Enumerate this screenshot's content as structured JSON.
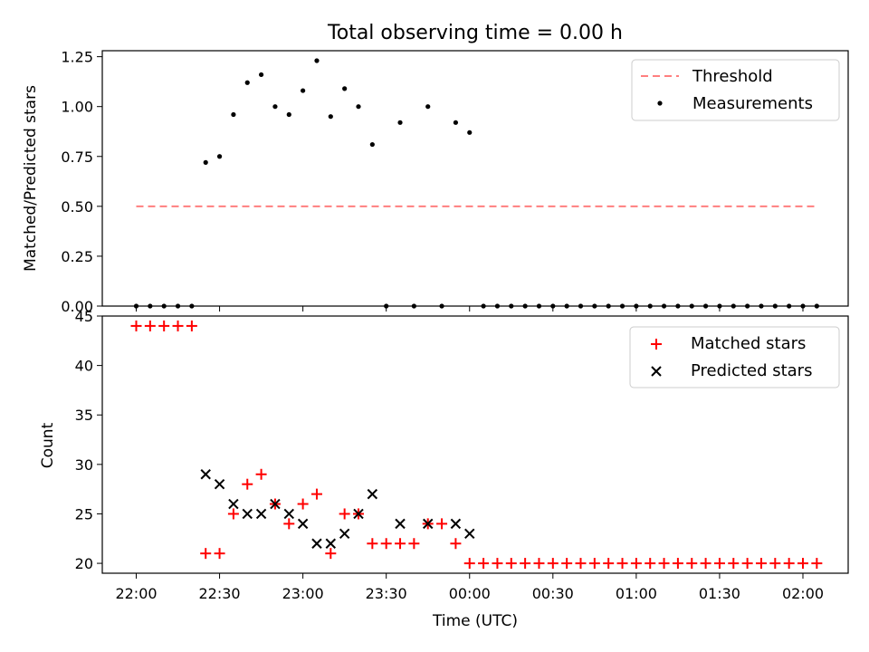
{
  "figure_title": "Total observing time = 0.00 h",
  "chart_data": [
    {
      "type": "scatter",
      "title": "",
      "xlabel": "",
      "ylabel": "Matched/Predicted stars",
      "ylim": [
        0,
        1.28
      ],
      "yticks": [
        "0.00",
        "0.25",
        "0.50",
        "0.75",
        "1.00",
        "1.25"
      ],
      "ytick_values": [
        0,
        0.25,
        0.5,
        0.75,
        1.0,
        1.25
      ],
      "legend": "top-right",
      "threshold": {
        "name": "Threshold",
        "value": 0.5,
        "x": [
          "22:00",
          "02:05"
        ],
        "color": "#ff7f7f"
      },
      "series": [
        {
          "name": "Measurements",
          "color": "#000000",
          "x": [
            "22:00",
            "22:05",
            "22:10",
            "22:15",
            "22:20",
            "22:25",
            "22:30",
            "22:35",
            "22:40",
            "22:45",
            "22:50",
            "22:55",
            "23:00",
            "23:05",
            "23:10",
            "23:15",
            "23:20",
            "23:25",
            "23:30",
            "23:35",
            "23:40",
            "23:45",
            "23:50",
            "23:55",
            "00:00",
            "00:05",
            "00:10",
            "00:15",
            "00:20",
            "00:25",
            "00:30",
            "00:35",
            "00:40",
            "00:45",
            "00:50",
            "00:55",
            "01:00",
            "01:05",
            "01:10",
            "01:15",
            "01:20",
            "01:25",
            "01:30",
            "01:35",
            "01:40",
            "01:45",
            "01:50",
            "01:55",
            "02:00",
            "02:05"
          ],
          "values": [
            0,
            0,
            0,
            0,
            0,
            0.72,
            0.75,
            0.96,
            1.12,
            1.16,
            1.0,
            0.96,
            1.08,
            1.23,
            0.95,
            1.09,
            1.0,
            0.81,
            0,
            0.92,
            0,
            1.0,
            0,
            0.92,
            0.87,
            0,
            0,
            0,
            0,
            0,
            0,
            0,
            0,
            0,
            0,
            0,
            0,
            0,
            0,
            0,
            0,
            0,
            0,
            0,
            0,
            0,
            0,
            0,
            0,
            0
          ]
        }
      ]
    },
    {
      "type": "scatter",
      "title": "",
      "xlabel": "Time (UTC)",
      "ylabel": "Count",
      "ylim": [
        19,
        45
      ],
      "yticks": [
        "20",
        "25",
        "30",
        "35",
        "40",
        "45"
      ],
      "ytick_values": [
        20,
        25,
        30,
        35,
        40,
        45
      ],
      "xticks": [
        "22:00",
        "22:30",
        "23:00",
        "23:30",
        "00:00",
        "00:30",
        "01:00",
        "01:30",
        "02:00"
      ],
      "legend": "top-right",
      "series": [
        {
          "name": "Matched stars",
          "marker": "plus",
          "color": "#ff0000",
          "x": [
            "22:00",
            "22:05",
            "22:10",
            "22:15",
            "22:20",
            "22:25",
            "22:30",
            "22:35",
            "22:40",
            "22:45",
            "22:50",
            "22:55",
            "23:00",
            "23:05",
            "23:10",
            "23:15",
            "23:20",
            "23:25",
            "23:30",
            "23:35",
            "23:40",
            "23:45",
            "23:50",
            "23:55",
            "00:00",
            "00:05",
            "00:10",
            "00:15",
            "00:20",
            "00:25",
            "00:30",
            "00:35",
            "00:40",
            "00:45",
            "00:50",
            "00:55",
            "01:00",
            "01:05",
            "01:10",
            "01:15",
            "01:20",
            "01:25",
            "01:30",
            "01:35",
            "01:40",
            "01:45",
            "01:50",
            "01:55",
            "02:00",
            "02:05"
          ],
          "values": [
            44,
            44,
            44,
            44,
            44,
            21,
            21,
            25,
            28,
            29,
            26,
            24,
            26,
            27,
            21,
            25,
            25,
            22,
            22,
            22,
            22,
            24,
            24,
            22,
            20,
            20,
            20,
            20,
            20,
            20,
            20,
            20,
            20,
            20,
            20,
            20,
            20,
            20,
            20,
            20,
            20,
            20,
            20,
            20,
            20,
            20,
            20,
            20,
            20,
            20
          ]
        },
        {
          "name": "Predicted stars",
          "marker": "x",
          "color": "#000000",
          "x": [
            "22:25",
            "22:30",
            "22:35",
            "22:40",
            "22:45",
            "22:50",
            "22:55",
            "23:00",
            "23:05",
            "23:10",
            "23:15",
            "23:20",
            "23:25",
            "23:35",
            "23:45",
            "23:55",
            "00:00"
          ],
          "values": [
            29,
            28,
            26,
            25,
            25,
            26,
            25,
            24,
            22,
            22,
            23,
            25,
            27,
            24,
            24,
            24,
            23
          ]
        }
      ]
    }
  ]
}
